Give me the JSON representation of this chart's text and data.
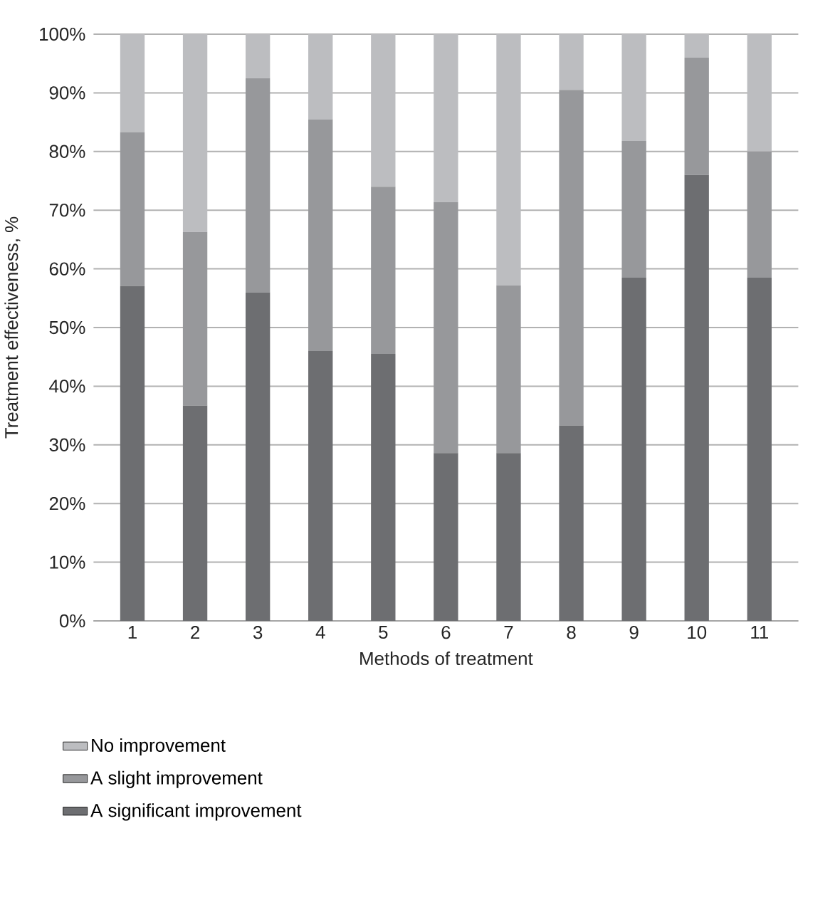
{
  "chart_data": {
    "type": "bar",
    "stacked": true,
    "xlabel": "Methods of treatment",
    "ylabel": "Treatment effectiveness, %",
    "categories": [
      "1",
      "2",
      "3",
      "4",
      "5",
      "6",
      "7",
      "8",
      "9",
      "10",
      "11"
    ],
    "series": [
      {
        "name": "A significant improvement",
        "color": "#6d6e71",
        "values": [
          57.1,
          36.7,
          56,
          46,
          45.5,
          28.6,
          28.6,
          33.3,
          58.5,
          76,
          58.5
        ]
      },
      {
        "name": "A slight improvement",
        "color": "#97989b",
        "values": [
          26.2,
          29.6,
          36.5,
          39.5,
          28.5,
          42.8,
          28.6,
          57.2,
          23.3,
          20,
          21.5
        ]
      },
      {
        "name": "No improvement",
        "color": "#bcbdc0",
        "values": [
          16.7,
          33.7,
          7.5,
          14.5,
          26,
          28.6,
          42.8,
          9.5,
          18.2,
          4,
          20
        ]
      }
    ],
    "ylim": [
      0,
      100
    ],
    "yticks": [
      {
        "value": 0,
        "label": "0%"
      },
      {
        "value": 10,
        "label": "10%"
      },
      {
        "value": 20,
        "label": "20%"
      },
      {
        "value": 30,
        "label": "30%"
      },
      {
        "value": 40,
        "label": "40%"
      },
      {
        "value": 50,
        "label": "50%"
      },
      {
        "value": 60,
        "label": "60%"
      },
      {
        "value": 70,
        "label": "70%"
      },
      {
        "value": 80,
        "label": "80%"
      },
      {
        "value": 90,
        "label": "90%"
      },
      {
        "value": 100,
        "label": "100%"
      }
    ],
    "grid": "y",
    "legend": "bottom"
  }
}
